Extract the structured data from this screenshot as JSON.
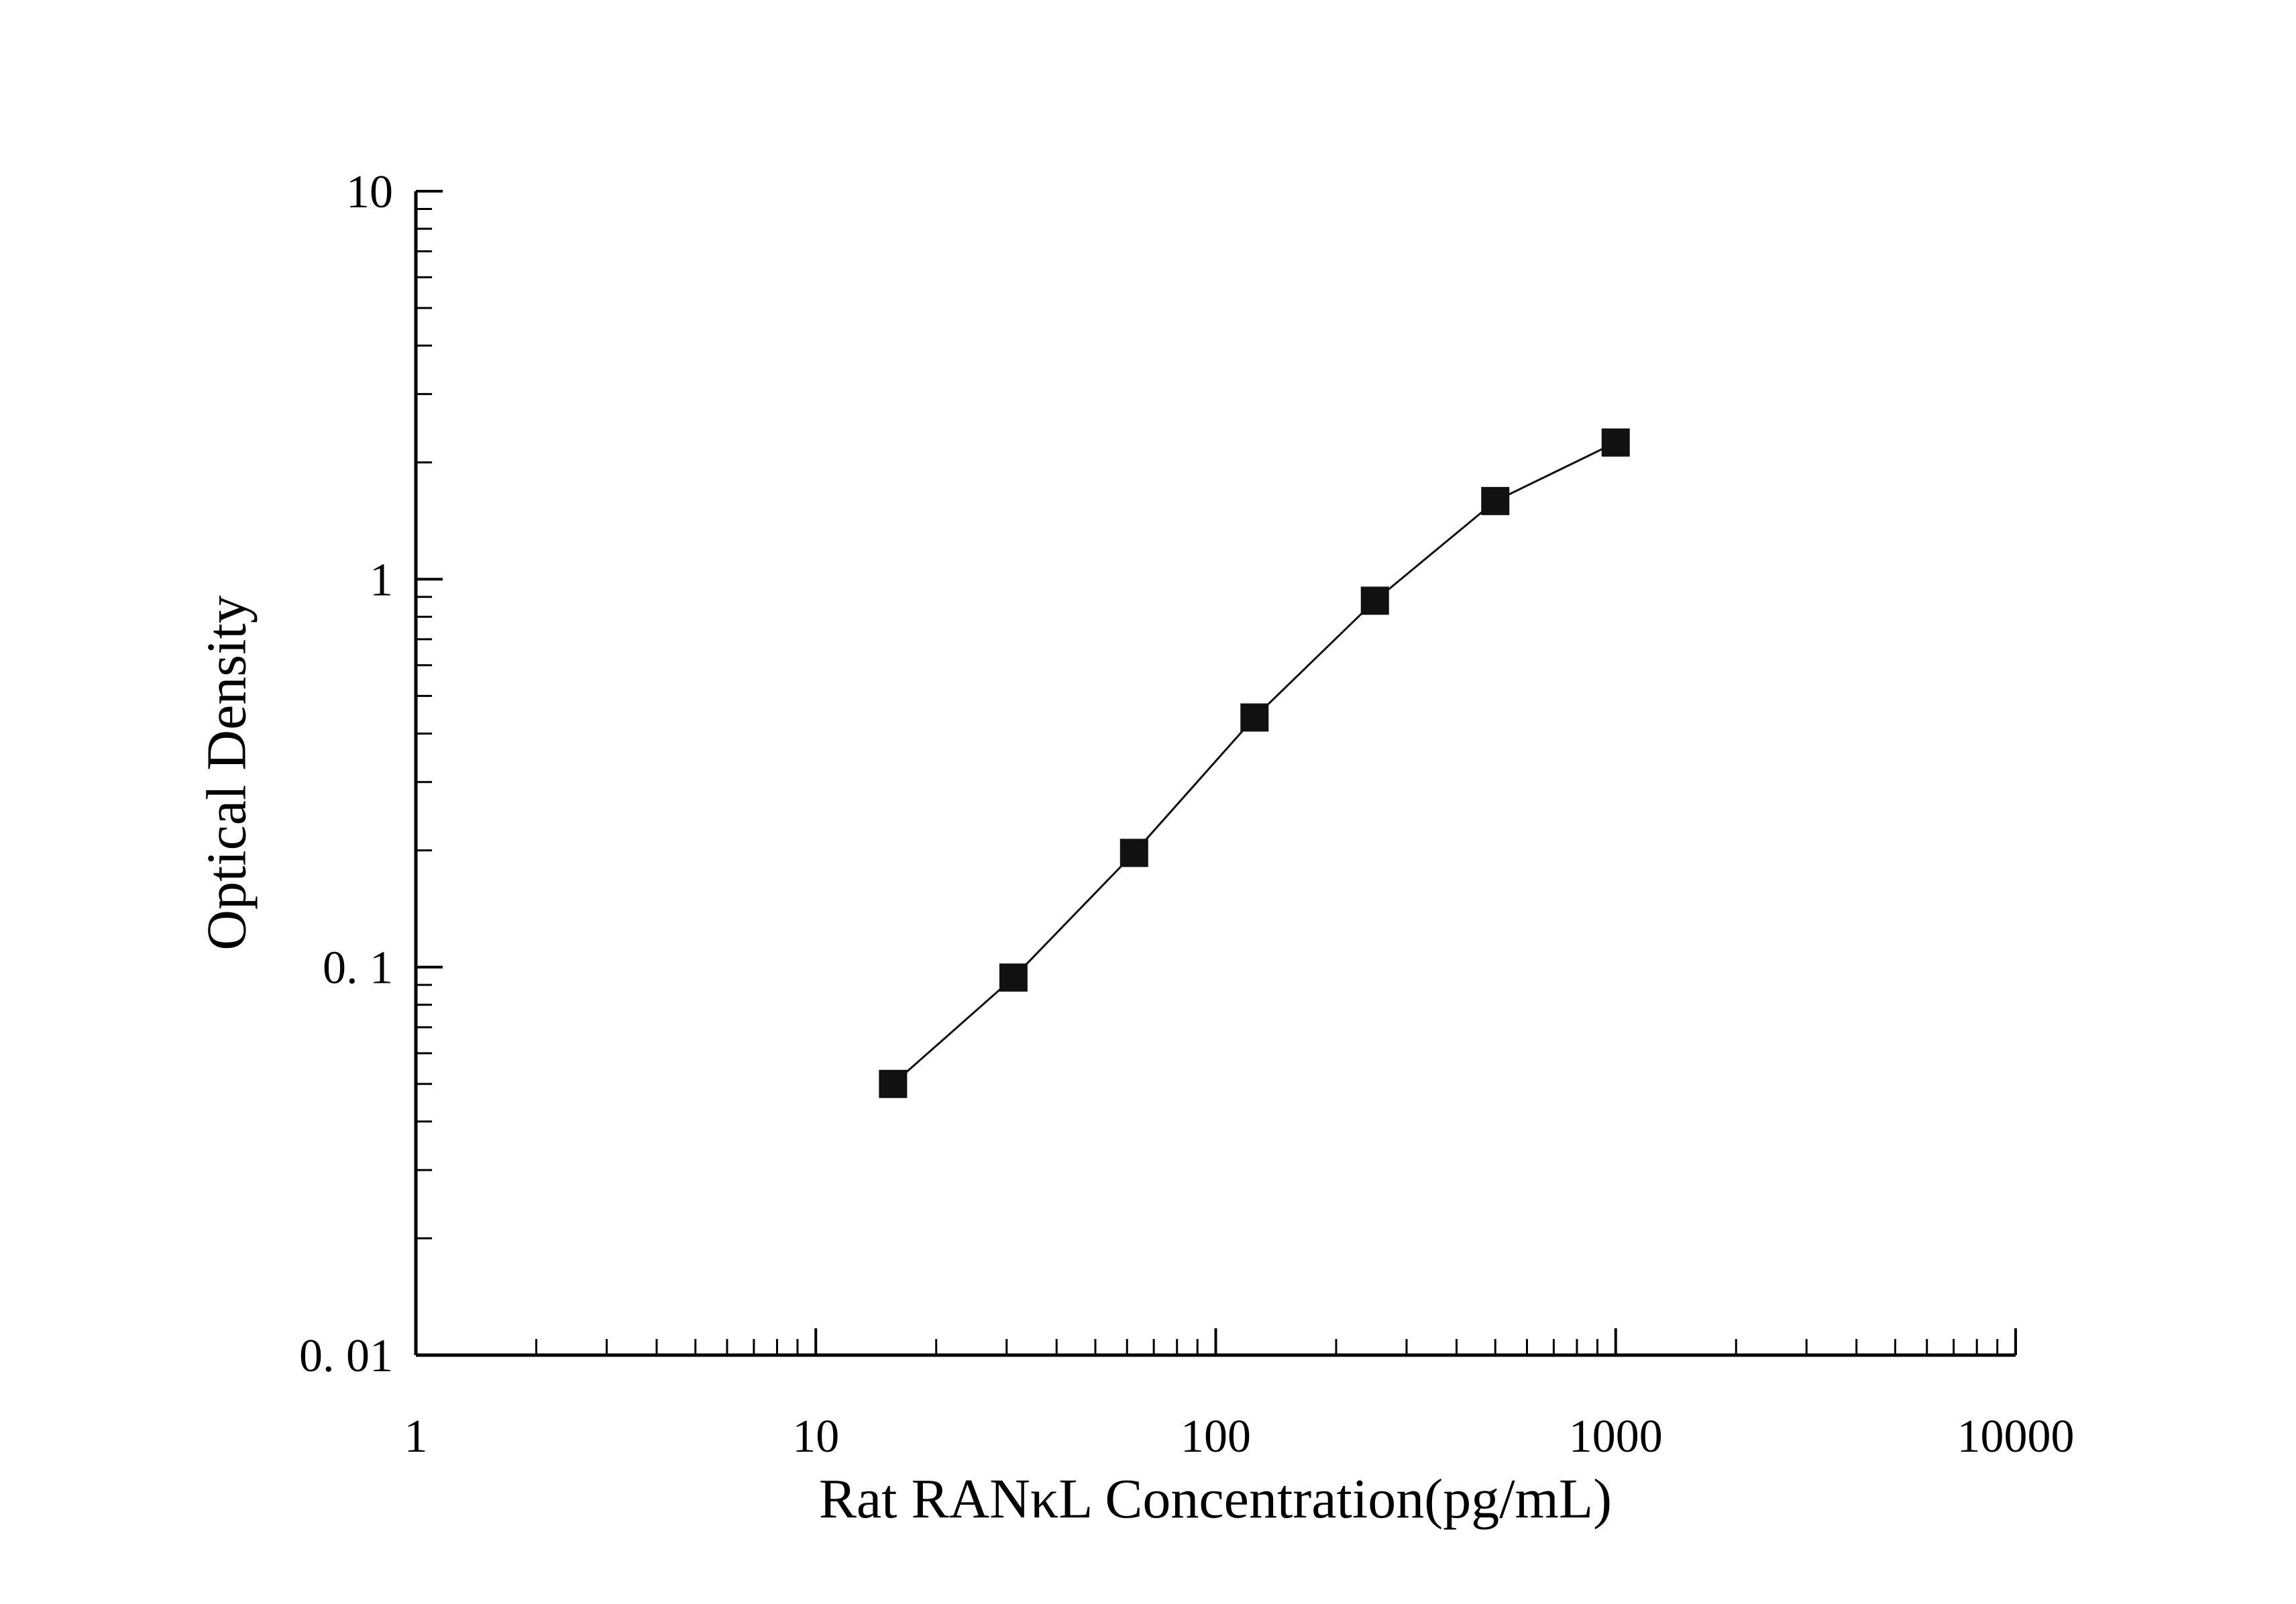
{
  "chart_data": {
    "type": "line",
    "title": "",
    "xlabel": "Rat RANκL Concentration(pg/mL)",
    "ylabel": "Optical Density",
    "x_scale": "log",
    "y_scale": "log",
    "xlim": [
      1,
      10000
    ],
    "ylim": [
      0.01,
      10
    ],
    "grid": false,
    "legend": false,
    "x_ticks": [
      {
        "value": 1,
        "label": "1"
      },
      {
        "value": 10,
        "label": "10"
      },
      {
        "value": 100,
        "label": "100"
      },
      {
        "value": 1000,
        "label": "1000"
      },
      {
        "value": 10000,
        "label": "10000"
      }
    ],
    "y_ticks": [
      {
        "value": 10,
        "label": "10"
      },
      {
        "value": 1,
        "label": "1"
      },
      {
        "value": 0.1,
        "label": "0. 1"
      },
      {
        "value": 0.01,
        "label": "0. 01"
      }
    ],
    "series": [
      {
        "marker": "square",
        "color": "#111111",
        "points": [
          {
            "x": 15.6,
            "y": 0.05
          },
          {
            "x": 31.2,
            "y": 0.094
          },
          {
            "x": 62.5,
            "y": 0.197
          },
          {
            "x": 125,
            "y": 0.44
          },
          {
            "x": 250,
            "y": 0.88
          },
          {
            "x": 500,
            "y": 1.59
          },
          {
            "x": 1000,
            "y": 2.25
          }
        ]
      }
    ]
  },
  "colors": {
    "background": "#ffffff",
    "axis": "#000000",
    "marker": "#111111"
  }
}
